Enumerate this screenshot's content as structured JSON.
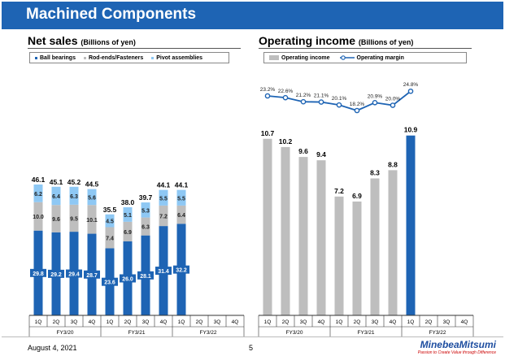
{
  "page": {
    "title": "Machined Components",
    "date": "August 4, 2021",
    "page_number": "5"
  },
  "logo": {
    "brand": "MinebeaMitsumi",
    "tagline": "Passion to Create Value through Difference"
  },
  "colors": {
    "title_bar": "#1e64b4",
    "ball_bearings": "#1e64b4",
    "rod_ends": "#bebebe",
    "pivot": "#8ec8f4",
    "op_income": "#bebebe",
    "op_income_highlight": "#1e64b4",
    "op_margin": "#1e64b4"
  },
  "chart_data": [
    {
      "type": "bar",
      "stacked": true,
      "title": "Net sales",
      "unit": "(Billions of yen)",
      "quarters": [
        "1Q",
        "2Q",
        "3Q",
        "4Q",
        "1Q",
        "2Q",
        "3Q",
        "4Q",
        "1Q",
        "2Q",
        "3Q",
        "4Q"
      ],
      "fiscal_years": [
        "FY3/20",
        "FY3/21",
        "FY3/22"
      ],
      "series": [
        {
          "name": "Ball bearings",
          "values": [
            29.8,
            29.2,
            29.4,
            28.7,
            23.6,
            26.0,
            28.1,
            31.4,
            32.2,
            null,
            null,
            null
          ]
        },
        {
          "name": "Rod-ends/Fasteners",
          "values": [
            10.0,
            9.6,
            9.5,
            10.1,
            7.4,
            6.9,
            6.3,
            7.2,
            6.4,
            null,
            null,
            null
          ]
        },
        {
          "name": "Pivot assemblies",
          "values": [
            6.2,
            6.4,
            6.3,
            5.6,
            4.5,
            5.1,
            5.3,
            5.5,
            5.5,
            null,
            null,
            null
          ]
        }
      ],
      "totals": [
        46.1,
        45.1,
        45.2,
        44.5,
        35.5,
        38.0,
        39.7,
        44.1,
        44.1,
        null,
        null,
        null
      ],
      "ylim": [
        0,
        50
      ]
    },
    {
      "type": "bar+line",
      "title": "Operating income",
      "unit": "(Billions of yen)",
      "quarters": [
        "1Q",
        "2Q",
        "3Q",
        "4Q",
        "1Q",
        "2Q",
        "3Q",
        "4Q",
        "1Q",
        "2Q",
        "3Q",
        "4Q"
      ],
      "fiscal_years": [
        "FY3/20",
        "FY3/21",
        "FY3/22"
      ],
      "series": [
        {
          "name": "Operating income",
          "type": "bar",
          "values": [
            10.7,
            10.2,
            9.6,
            9.4,
            7.2,
            6.9,
            8.3,
            8.8,
            10.9,
            null,
            null,
            null
          ]
        },
        {
          "name": "Operating margin",
          "type": "line",
          "values": [
            23.2,
            22.6,
            21.2,
            21.1,
            20.1,
            18.2,
            20.9,
            20.0,
            24.8,
            null,
            null,
            null
          ],
          "labels": [
            "23.2%",
            "22.6%",
            "21.2%",
            "21.1%",
            "20.1%",
            "18.2%",
            "20.9%",
            "20.0%",
            "24.8%",
            null,
            null,
            null
          ]
        }
      ],
      "highlight_index": 8,
      "ylim": [
        0,
        14
      ],
      "margin_ylim": [
        0,
        26
      ]
    }
  ]
}
